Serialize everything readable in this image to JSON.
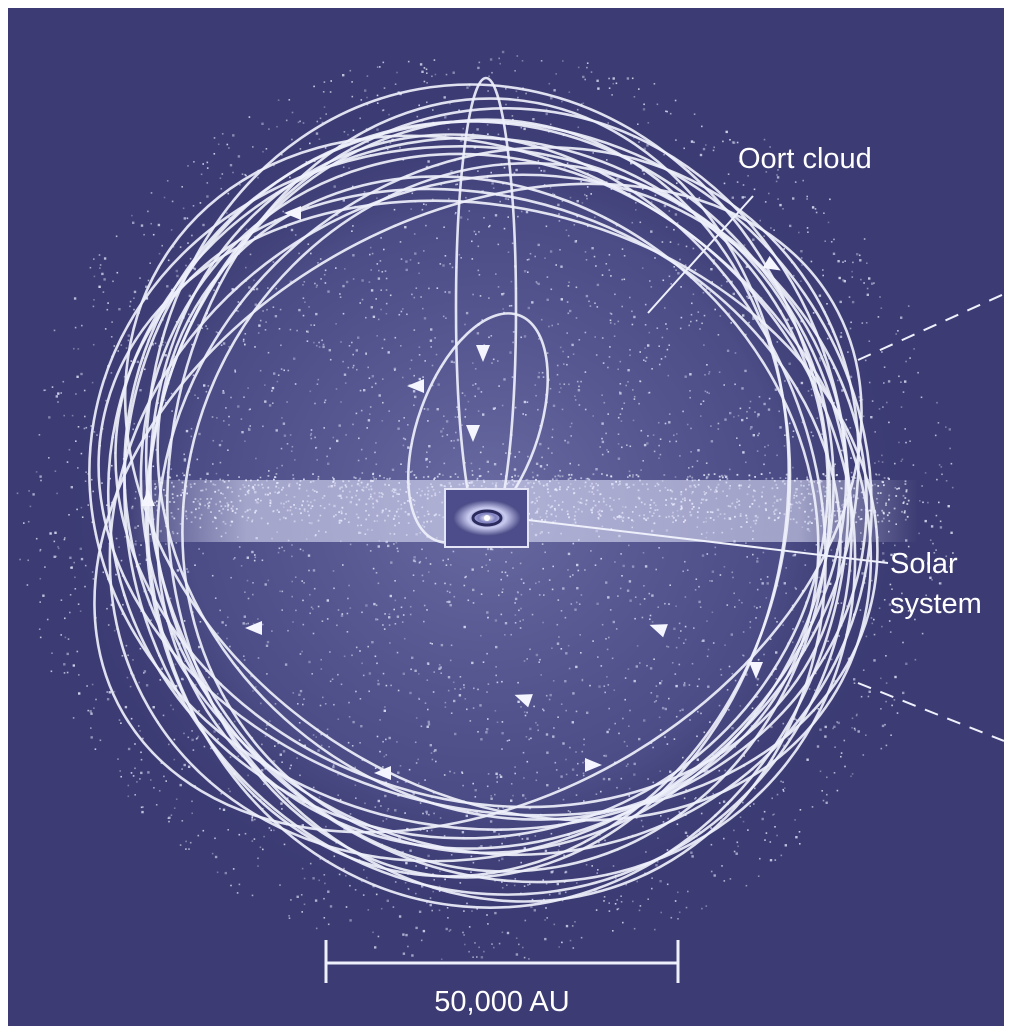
{
  "labels": {
    "oort_cloud": "Oort cloud",
    "solar_line1": "Solar",
    "solar_line2": "system",
    "scale_bar": "50,000 AU"
  },
  "colors": {
    "background": "#3c3b73",
    "orbit": "#eef0fb",
    "particles": "#d6d9f0",
    "frame": "#c9cae0"
  },
  "icons": [
    "direction-arrow-icon"
  ]
}
